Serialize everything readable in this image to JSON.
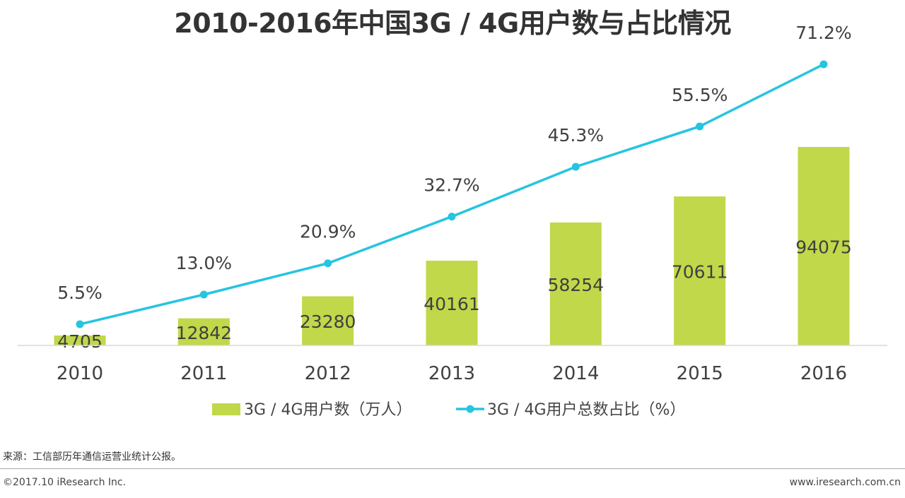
{
  "title": "2010-2016年中国3G / 4G用户数与占比情况",
  "chart_data": {
    "type": "bar+line",
    "title": "2010-2016年中国3G / 4G用户数与占比情况",
    "categories": [
      "2010",
      "2011",
      "2012",
      "2013",
      "2014",
      "2015",
      "2016"
    ],
    "series": [
      {
        "name": "3G / 4G用户数（万人）",
        "type": "bar",
        "values": [
          4705,
          12842,
          23280,
          40161,
          58254,
          70611,
          94075
        ],
        "labels": [
          "4705",
          "12842",
          "23280",
          "40161",
          "58254",
          "70611",
          "94075"
        ],
        "color": "#c0d84a"
      },
      {
        "name": "3G / 4G用户总数占比（%）",
        "type": "line",
        "values": [
          5.5,
          13.0,
          20.9,
          32.7,
          45.3,
          55.5,
          71.2
        ],
        "labels": [
          "5.5%",
          "13.0%",
          "20.9%",
          "32.7%",
          "45.3%",
          "55.5%",
          "71.2%"
        ],
        "color": "#26c4e0"
      }
    ],
    "legend": "bottom-center",
    "grid": false
  },
  "legend": {
    "bar_label": "3G / 4G用户数（万人）",
    "line_label": "3G / 4G用户总数占比（%）"
  },
  "footer": {
    "source": "来源：工信部历年通信运营业统计公报。",
    "copyright": "©2017.10 iResearch Inc.",
    "url": "www.iresearch.com.cn"
  }
}
